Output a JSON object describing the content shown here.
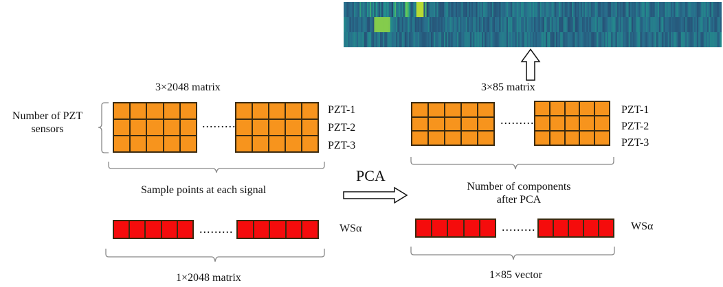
{
  "colors": {
    "sensor_matrix": "#f7941d",
    "ws_vector": "#f50c0c",
    "heatmap_low": "#2f6f8a",
    "heatmap_high": "#d9e021"
  },
  "left": {
    "matrix_title": "3×2048 matrix",
    "group_label": "Number of PZT\nsensors",
    "rows": [
      "PZT-1",
      "PZT-2",
      "PZT-3"
    ],
    "dots": ".........",
    "brace_label": "Sample points at each signal",
    "ws_label": "WSα",
    "bottom_label": "1×2048 matrix"
  },
  "middle": {
    "arrow_label": "PCA"
  },
  "right": {
    "matrix_title": "3×85 matrix",
    "rows": [
      "PZT-1",
      "PZT-2",
      "PZT-3"
    ],
    "dots": ".........",
    "brace_label": "Number of components\nafter PCA",
    "ws_label": "WSα",
    "bottom_label": "1×85 vector"
  },
  "heatmap": {
    "description_icon": "heatmap-strip",
    "rows": 3,
    "columns": 85
  }
}
